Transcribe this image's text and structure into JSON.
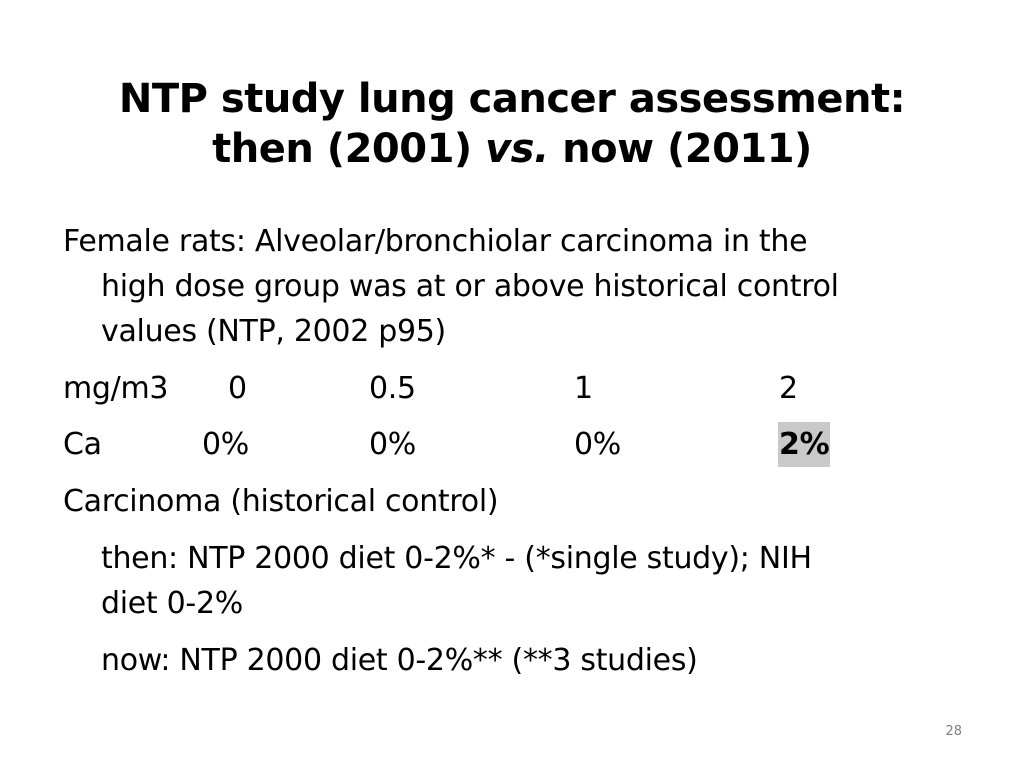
{
  "slide": {
    "title": {
      "line1": "NTP study lung cancer assessment:",
      "line2_before": "then (2001) ",
      "line2_italic": "vs.",
      "line2_after": " now (2011)"
    },
    "paragraph1": {
      "line1": "Female rats: Alveolar/bronchiolar carcinoma in the",
      "line2": "high dose group was at or above historical control",
      "line3": "values  (NTP, 2002 p95)"
    },
    "dose_row": {
      "label": "mg/m3",
      "values": [
        "0",
        "0.5",
        "1",
        "2"
      ]
    },
    "ca_row": {
      "label": "Ca",
      "values": [
        "0%",
        "0%",
        "0%",
        "2%"
      ]
    },
    "historical_heading": "Carcinoma (historical control)",
    "then_line1": "then: NTP 2000 diet   0-2%* - (*single study); NIH",
    "then_line2": "diet 0-2%",
    "now_line": "now:  NTP 2000 diet  0-2%** (**3 studies)",
    "page_number": "28"
  }
}
